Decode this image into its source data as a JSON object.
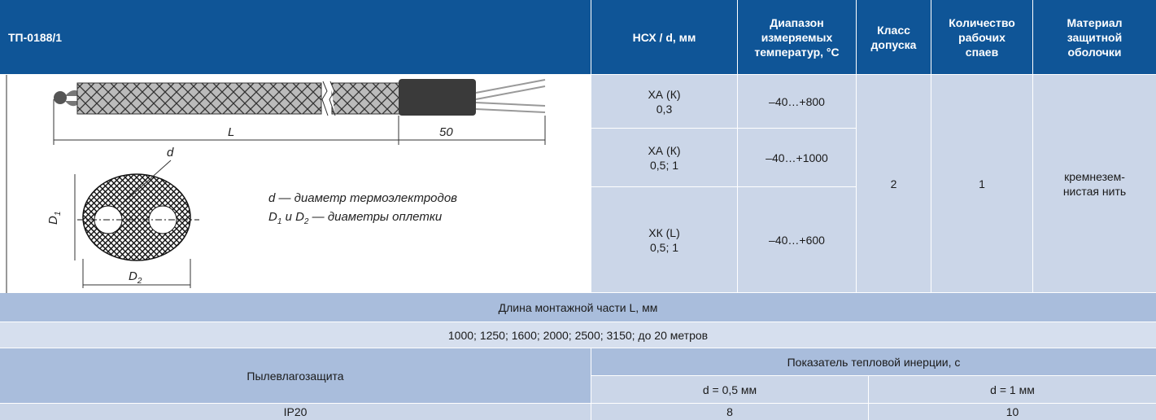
{
  "header": {
    "model": "ТП-0188/1",
    "columns": [
      [
        "НСХ / d, мм"
      ],
      [
        "Диапазон",
        "измеряемых",
        "температур, °C"
      ],
      [
        "Класс",
        "допуска"
      ],
      [
        "Количество",
        "рабочих",
        "спаев"
      ],
      [
        "Материал",
        "защитной",
        "оболочки"
      ]
    ]
  },
  "diagram": {
    "L": "L",
    "length_50": 50,
    "d": "d",
    "D1": [
      "D",
      "1"
    ],
    "D2": [
      "D",
      "2"
    ],
    "legend_1": "d — диаметр термоэлектродов",
    "legend_2": [
      "D",
      "1",
      " и D",
      "2",
      " — диаметры оплетки"
    ]
  },
  "rows": [
    {
      "type": "ХА (К)",
      "d": "0,3",
      "range": "–40…+800"
    },
    {
      "type": "ХА (К)",
      "d": "0,5; 1",
      "range": "–40…+1000"
    },
    {
      "type": "ХК (L)",
      "d": "0,5; 1",
      "range": "–40…+600"
    }
  ],
  "tolerance_class": 2,
  "junctions": 1,
  "material": [
    "кремнезем-",
    "нистая нить"
  ],
  "mount_length": {
    "label": "Длина монтажной части L, мм",
    "values": "1000; 1250; 1600; 2000; 2500; 3150; до 20 метров"
  },
  "protection": {
    "label": "Пылевлагозащита",
    "value": "IP20"
  },
  "inertia": {
    "label": "Показатель тепловой инерции, с",
    "columns": [
      {
        "label": "d = 0,5 мм",
        "value": 8
      },
      {
        "label": "d = 1 мм",
        "value": 10
      }
    ]
  }
}
